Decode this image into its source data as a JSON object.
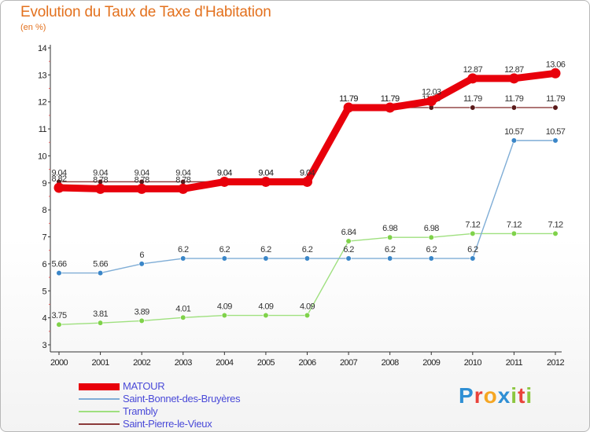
{
  "header": {
    "title": "Evolution du Taux de Taxe d'Habitation",
    "subtitle": "(en %)"
  },
  "logo": {
    "text": "Proxiti",
    "letter_colors": [
      "#2f8fd4",
      "#e9423a",
      "#f5a623",
      "#2f8fd4",
      "#8cc63f",
      "#e9423a",
      "#8cc63f"
    ]
  },
  "chart_data": {
    "type": "line",
    "title": "Evolution du Taux de Taxe d'Habitation",
    "subtitle": "(en %)",
    "xlabel": "",
    "ylabel": "",
    "ylim": [
      3,
      14
    ],
    "yticks": [
      3,
      4,
      5,
      6,
      7,
      8,
      9,
      10,
      11,
      12,
      13,
      14
    ],
    "grid": false,
    "legend_position": "bottom-left",
    "x": [
      "2000",
      "2001",
      "2002",
      "2003",
      "2004",
      "2005",
      "2006",
      "2007",
      "2008",
      "2009",
      "2010",
      "2011",
      "2012"
    ],
    "series": [
      {
        "name": "Saint-Pierre-le-Vieux",
        "color": "#8b3a3a",
        "marker": "#5a1a1a",
        "values": [
          9.04,
          9.04,
          9.04,
          9.04,
          9.04,
          9.04,
          9.04,
          11.79,
          11.79,
          11.79,
          11.79,
          11.79,
          11.79
        ],
        "labels": [
          "9.04",
          "9.04",
          "9.04",
          "9.04",
          "9.04",
          "9.04",
          "9.04",
          "11.79",
          "11.79",
          "11.79",
          "11.79",
          "11.79",
          "11.79"
        ]
      },
      {
        "name": "Trambly",
        "color": "#9fe07f",
        "marker": "#7fd24a",
        "values": [
          3.75,
          3.81,
          3.89,
          4.01,
          4.09,
          4.09,
          4.09,
          6.84,
          6.98,
          6.98,
          7.12,
          7.12,
          7.12
        ],
        "labels": [
          "3.75",
          "3.81",
          "3.89",
          "4.01",
          "4.09",
          "4.09",
          "4.09",
          "6.84",
          "6.98",
          "6.98",
          "7.12",
          "7.12",
          "7.12"
        ]
      },
      {
        "name": "Saint-Bonnet-des-Bruyères",
        "color": "#7fadd6",
        "marker": "#3a86c8",
        "values": [
          5.66,
          5.66,
          6,
          6.2,
          6.2,
          6.2,
          6.2,
          6.2,
          6.2,
          6.2,
          6.2,
          10.57,
          10.57
        ],
        "labels": [
          "5.66",
          "5.66",
          "6",
          "6.2",
          "6.2",
          "6.2",
          "6.2",
          "6.2",
          "6.2",
          "6.2",
          "6.2",
          "10.57",
          "10.57"
        ]
      },
      {
        "name": "MATOUR",
        "color": "#e8000b",
        "marker": "#e8000b",
        "thick": true,
        "values": [
          8.82,
          8.78,
          8.78,
          8.78,
          9.04,
          9.04,
          9.04,
          11.79,
          11.79,
          12.03,
          12.87,
          12.87,
          13.06
        ],
        "labels": [
          "8.82",
          "8.78",
          "8.78",
          "8.78",
          "9.04",
          "9.04",
          "9.04",
          "11.79",
          "11.79",
          "12.03",
          "12.87",
          "12.87",
          "13.06"
        ]
      }
    ],
    "legend_order": [
      "MATOUR",
      "Saint-Bonnet-des-Bruyères",
      "Trambly",
      "Saint-Pierre-le-Vieux"
    ]
  }
}
